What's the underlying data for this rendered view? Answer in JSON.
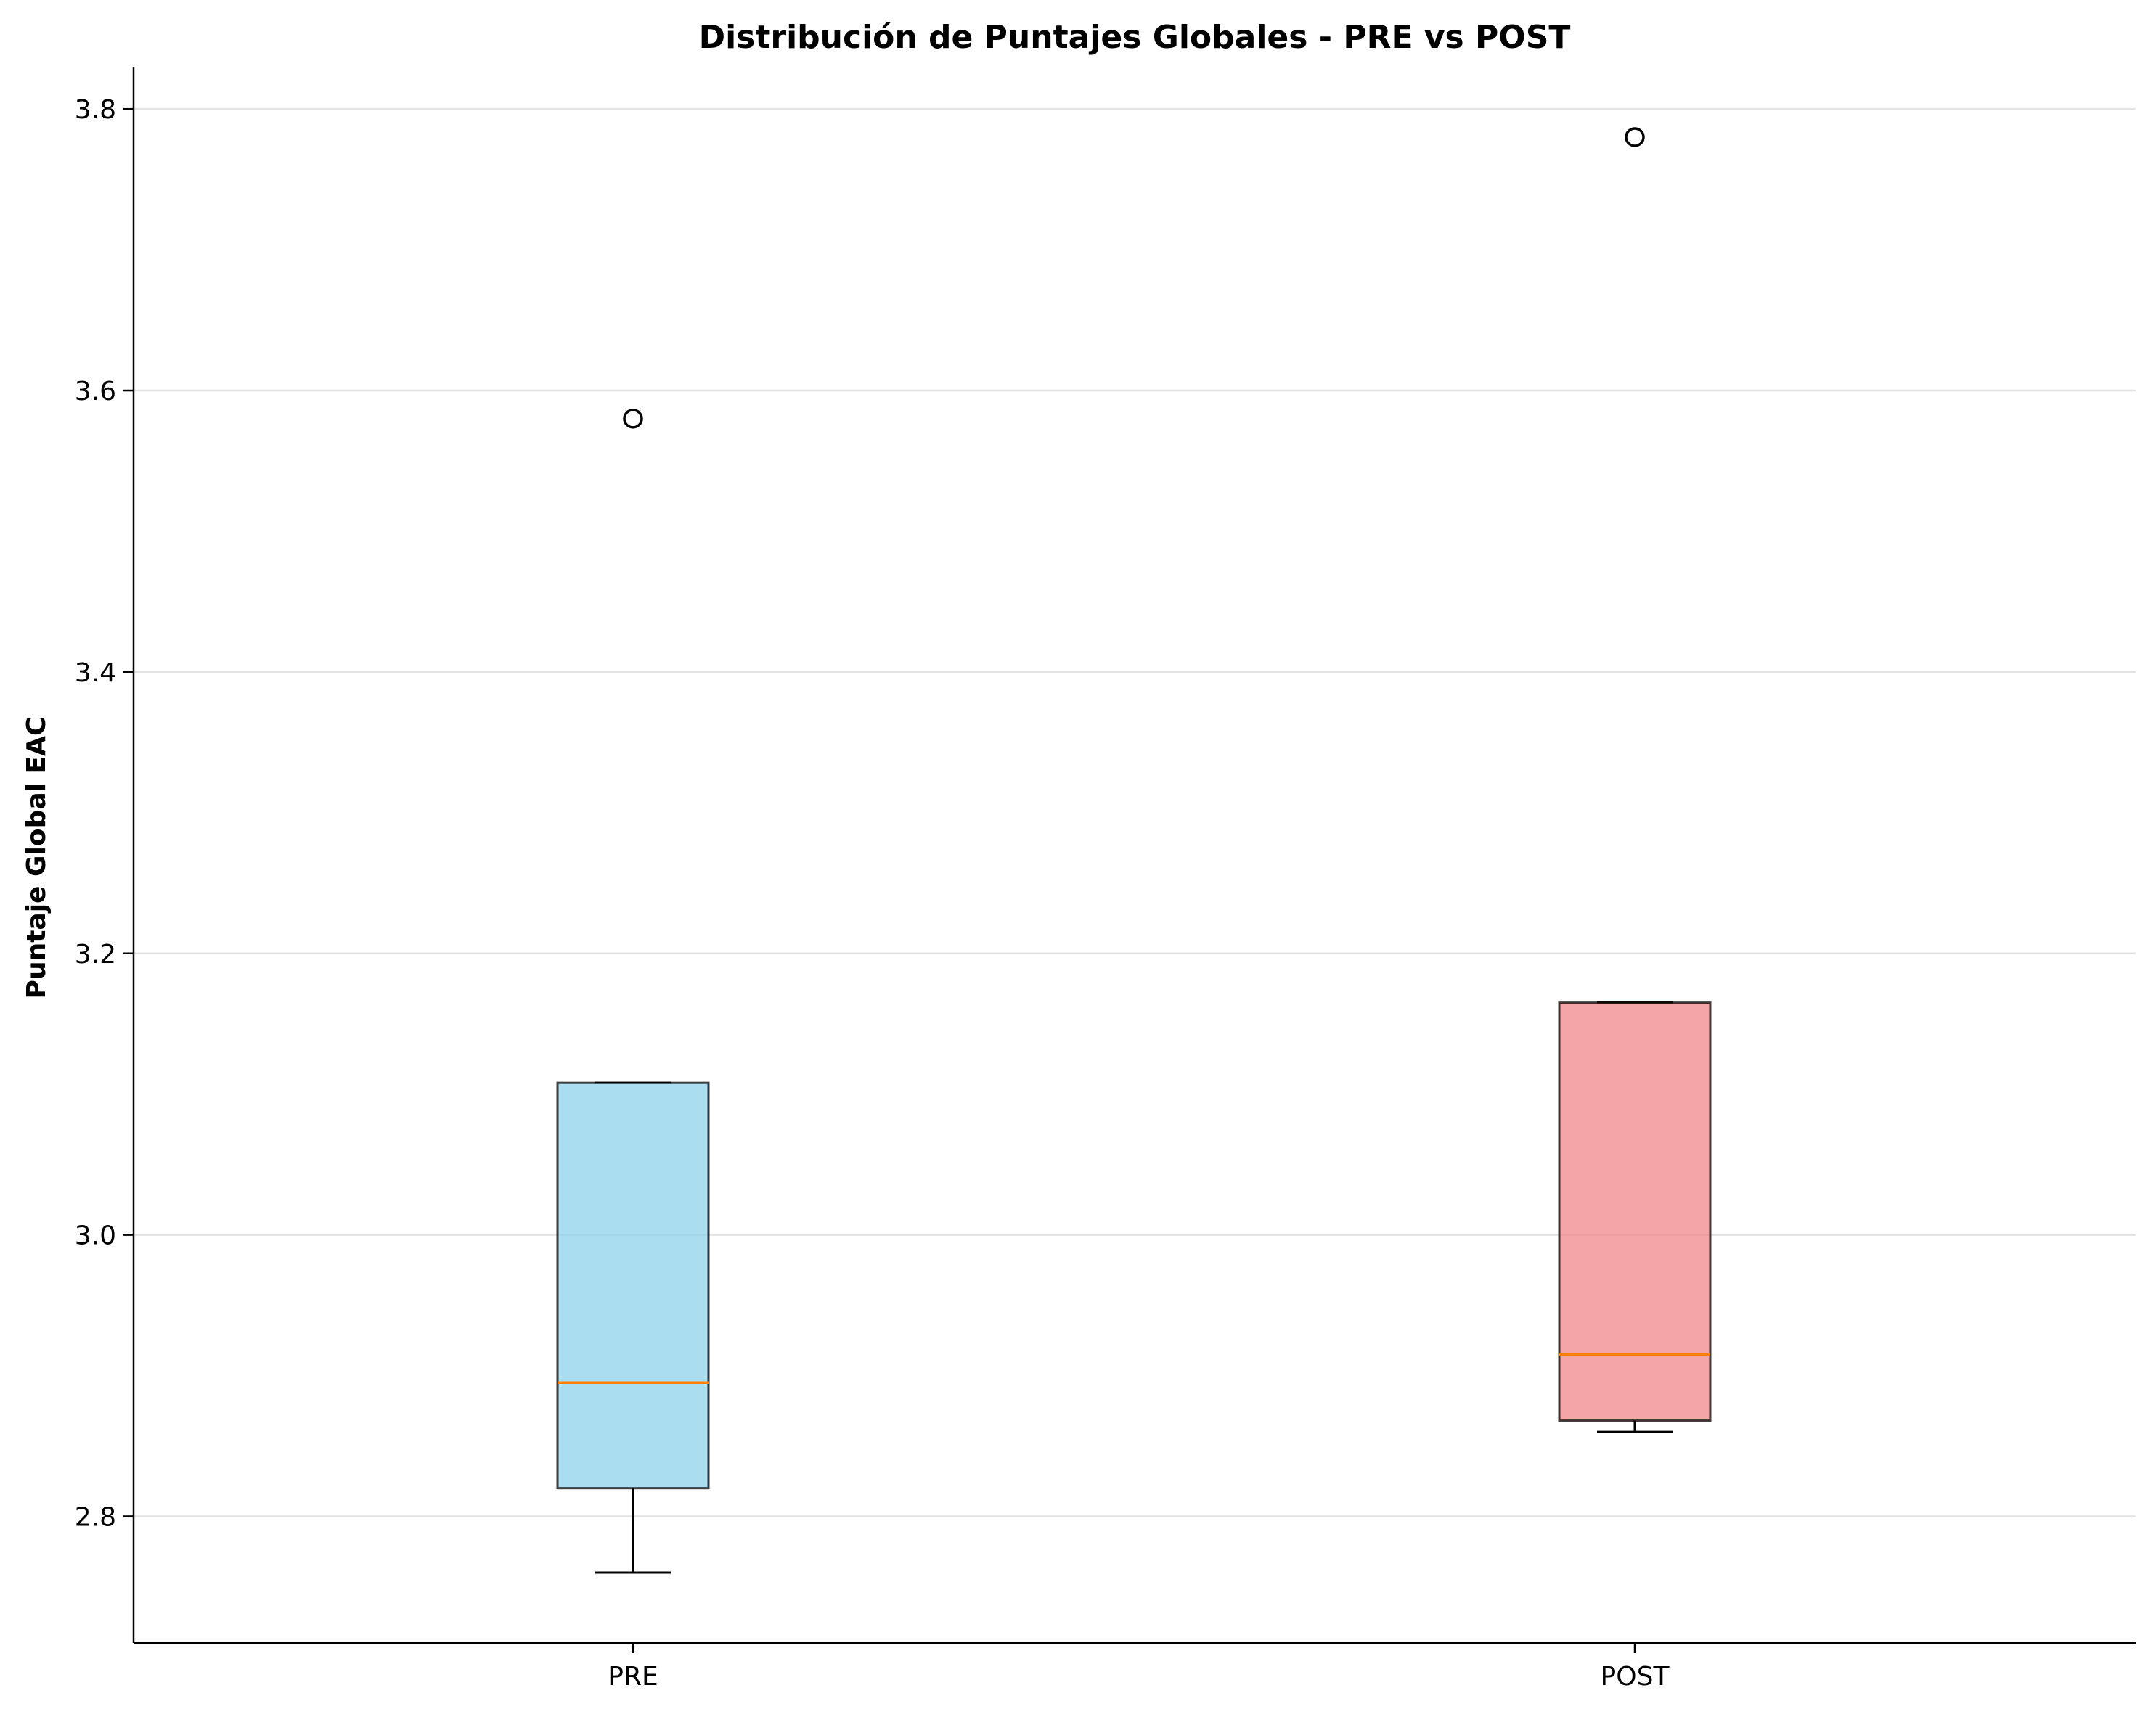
{
  "chart_data": {
    "type": "box",
    "title": "Distribución de Puntajes Globales - PRE vs POST",
    "xlabel": "",
    "ylabel": "Puntaje Global EAC",
    "ylim": [
      2.71,
      3.83
    ],
    "yticks": [
      "2.8",
      "3.0",
      "3.2",
      "3.4",
      "3.6",
      "3.8"
    ],
    "grid": "horizontal",
    "median_color": "#ff7f0e",
    "categories": [
      "PRE",
      "POST"
    ],
    "series": [
      {
        "category": "PRE",
        "color": "#87ceeb",
        "whisker_low": 2.76,
        "q1": 2.82,
        "median": 2.895,
        "q3": 3.108,
        "whisker_high": 3.108,
        "outliers": [
          3.58
        ]
      },
      {
        "category": "POST",
        "color": "#f08080",
        "whisker_low": 2.86,
        "q1": 2.868,
        "median": 2.915,
        "q3": 3.165,
        "whisker_high": 3.165,
        "outliers": [
          3.78
        ]
      }
    ]
  }
}
